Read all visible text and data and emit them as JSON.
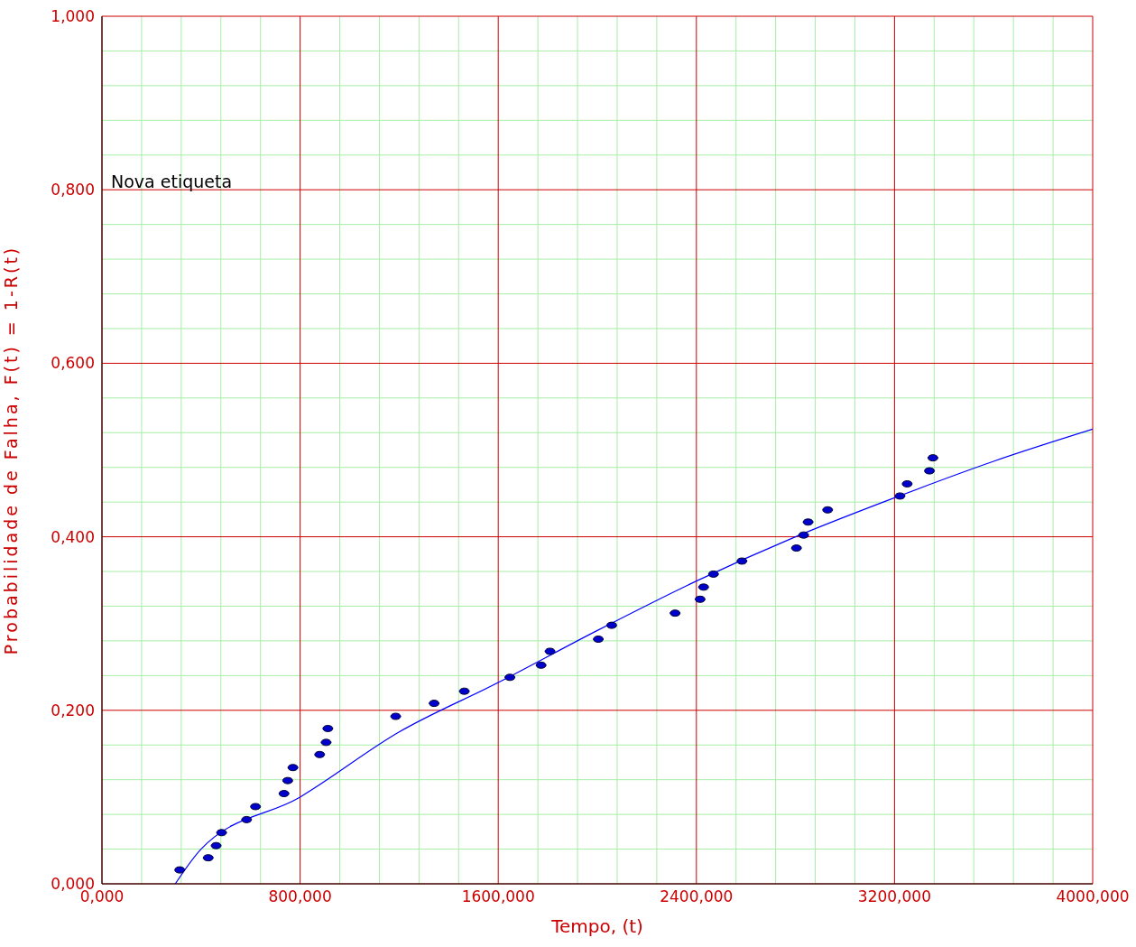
{
  "chart_data": {
    "type": "scatter",
    "xlabel": "Tempo, (t)",
    "ylabel": "Probabilidade de Falha, F(t) = 1-R(t)",
    "annotations": [
      "Nova etiqueta"
    ],
    "xlim": [
      0,
      4000
    ],
    "ylim": [
      0,
      1
    ],
    "xticks": [
      {
        "value": 0,
        "label": "0,000"
      },
      {
        "value": 160,
        "label": null
      },
      {
        "value": 320,
        "label": null
      },
      {
        "value": 480,
        "label": null
      },
      {
        "value": 640,
        "label": null
      },
      {
        "value": 800,
        "label": "800,000"
      },
      {
        "value": 960,
        "label": null
      },
      {
        "value": 1120,
        "label": null
      },
      {
        "value": 1280,
        "label": null
      },
      {
        "value": 1440,
        "label": null
      },
      {
        "value": 1600,
        "label": "1600,000"
      },
      {
        "value": 1760,
        "label": null
      },
      {
        "value": 1920,
        "label": null
      },
      {
        "value": 2080,
        "label": null
      },
      {
        "value": 2240,
        "label": null
      },
      {
        "value": 2400,
        "label": "2400,000"
      },
      {
        "value": 2560,
        "label": null
      },
      {
        "value": 2720,
        "label": null
      },
      {
        "value": 2880,
        "label": null
      },
      {
        "value": 3040,
        "label": null
      },
      {
        "value": 3200,
        "label": "3200,000"
      },
      {
        "value": 3360,
        "label": null
      },
      {
        "value": 3520,
        "label": null
      },
      {
        "value": 3680,
        "label": null
      },
      {
        "value": 3840,
        "label": null
      },
      {
        "value": 4000,
        "label": "4000,000"
      }
    ],
    "yticks": [
      {
        "value": 0,
        "label": "0,000"
      },
      {
        "value": 0.04,
        "label": null
      },
      {
        "value": 0.08,
        "label": null
      },
      {
        "value": 0.12,
        "label": null
      },
      {
        "value": 0.16,
        "label": null
      },
      {
        "value": 0.2,
        "label": "0,200"
      },
      {
        "value": 0.24,
        "label": null
      },
      {
        "value": 0.28,
        "label": null
      },
      {
        "value": 0.32,
        "label": null
      },
      {
        "value": 0.36,
        "label": null
      },
      {
        "value": 0.4,
        "label": "0,400"
      },
      {
        "value": 0.44,
        "label": null
      },
      {
        "value": 0.48,
        "label": null
      },
      {
        "value": 0.52,
        "label": null
      },
      {
        "value": 0.56,
        "label": null
      },
      {
        "value": 0.6,
        "label": "0,600"
      },
      {
        "value": 0.64,
        "label": null
      },
      {
        "value": 0.68,
        "label": null
      },
      {
        "value": 0.72,
        "label": null
      },
      {
        "value": 0.76,
        "label": null
      },
      {
        "value": 0.8,
        "label": "0,800"
      },
      {
        "value": 0.84,
        "label": null
      },
      {
        "value": 0.88,
        "label": null
      },
      {
        "value": 0.92,
        "label": null
      },
      {
        "value": 0.96,
        "label": null
      },
      {
        "value": 1,
        "label": "1,000"
      }
    ],
    "grid": true,
    "marker": "circle",
    "series": [
      {
        "color": "#0000cc",
        "x": [
          314,
          429,
          461,
          483,
          584,
          620,
          735,
          750,
          771,
          879,
          905,
          912,
          1186,
          1341,
          1463,
          1647,
          1773,
          1809,
          2004,
          2058,
          2314,
          2415,
          2429,
          2469,
          2584,
          2804,
          2833,
          2851,
          2930,
          3222,
          3251,
          3341,
          3355
        ],
        "values": [
          0.016,
          0.03,
          0.044,
          0.059,
          0.074,
          0.089,
          0.104,
          0.119,
          0.134,
          0.149,
          0.163,
          0.179,
          0.193,
          0.208,
          0.222,
          0.238,
          0.252,
          0.268,
          0.282,
          0.298,
          0.312,
          0.328,
          0.342,
          0.357,
          0.372,
          0.387,
          0.402,
          0.417,
          0.431,
          0.447,
          0.461,
          0.476,
          0.491
        ]
      },
      {
        "type": "line",
        "color": "#0000ff",
        "marker": "none",
        "x": [
          296,
          400,
          800,
          1200,
          1600,
          2000,
          2400,
          2800,
          3200,
          3600,
          4000
        ],
        "values": [
          0,
          0.04,
          0.1,
          0.175,
          0.232,
          0.292,
          0.349,
          0.4,
          0.445,
          0.487,
          0.524
        ]
      }
    ]
  }
}
